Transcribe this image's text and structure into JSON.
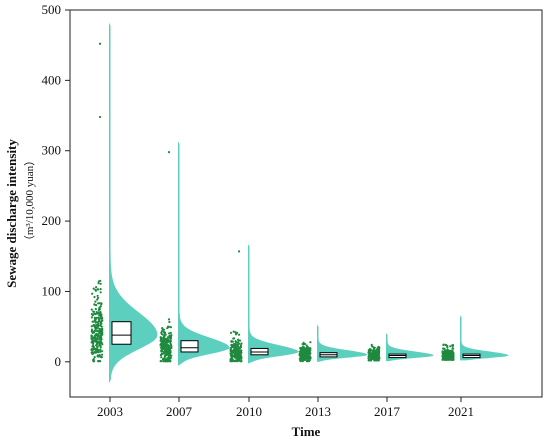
{
  "chart_data": {
    "type": "violin",
    "xlabel": "Time",
    "ylabel": "Sewage discharge intensity",
    "ylabel_unit": "（m³/10,000 yuan）",
    "ylim": [
      -50,
      500
    ],
    "yticks": [
      "0",
      "100",
      "200",
      "300",
      "400",
      "500"
    ],
    "categories": [
      "2003",
      "2007",
      "2010",
      "2013",
      "2017",
      "2021"
    ],
    "colors": {
      "violin": "#5ccfbf",
      "points": "#1f8a3f",
      "box": "#000000"
    },
    "groups": [
      {
        "label": "2003",
        "min": -30,
        "max": 482,
        "q1": 25,
        "median": 38,
        "q3": 57,
        "peak": 38,
        "outliers": [
          452,
          348
        ]
      },
      {
        "label": "2007",
        "min": -5,
        "max": 313,
        "q1": 14,
        "median": 20,
        "q3": 30,
        "peak": 20,
        "outliers": [
          298
        ]
      },
      {
        "label": "2010",
        "min": -2,
        "max": 167,
        "q1": 10,
        "median": 14,
        "q3": 19,
        "peak": 14,
        "outliers": [
          157
        ]
      },
      {
        "label": "2013",
        "min": 0,
        "max": 53,
        "q1": 7,
        "median": 10,
        "q3": 13,
        "peak": 10,
        "outliers": []
      },
      {
        "label": "2017",
        "min": 1,
        "max": 41,
        "q1": 6,
        "median": 9,
        "q3": 11,
        "peak": 9,
        "outliers": []
      },
      {
        "label": "2021",
        "min": 2,
        "max": 66,
        "q1": 6,
        "median": 9,
        "q3": 11,
        "peak": 9,
        "outliers": []
      }
    ]
  }
}
